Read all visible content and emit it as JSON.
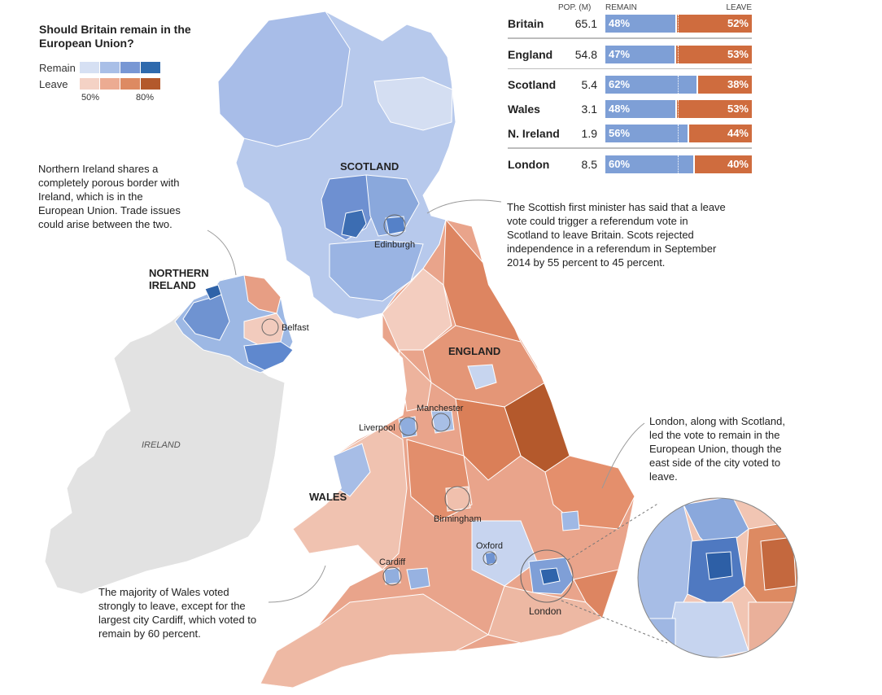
{
  "legend": {
    "title": "Should Britain remain in the European Union?",
    "remain_label": "Remain",
    "leave_label": "Leave",
    "tick_low": "50%",
    "tick_high": "80%",
    "remain_colors": [
      "#d6e0f3",
      "#a9bfe7",
      "#7897d4",
      "#2f6aad"
    ],
    "leave_colors": [
      "#f4d2c5",
      "#ecab92",
      "#dd8a62",
      "#b3592c"
    ]
  },
  "results": {
    "headers": {
      "pop": "POP. (M)",
      "remain": "REMAIN",
      "leave": "LEAVE"
    },
    "rows": [
      {
        "name": "Britain",
        "pop": "65.1",
        "remain": "48%",
        "leave": "52%",
        "remain_value": 48
      },
      {
        "name": "England",
        "pop": "54.8",
        "remain": "47%",
        "leave": "53%",
        "remain_value": 47
      },
      {
        "name": "Scotland",
        "pop": "5.4",
        "remain": "62%",
        "leave": "38%",
        "remain_value": 62
      },
      {
        "name": "Wales",
        "pop": "3.1",
        "remain": "48%",
        "leave": "53%",
        "remain_value": 48
      },
      {
        "name": "N. Ireland",
        "pop": "1.9",
        "remain": "56%",
        "leave": "44%",
        "remain_value": 56
      },
      {
        "name": "London",
        "pop": "8.5",
        "remain": "60%",
        "leave": "40%",
        "remain_value": 60
      }
    ]
  },
  "regions": {
    "scotland": "SCOTLAND",
    "northern_ireland_1": "NORTHERN",
    "northern_ireland_2": "IRELAND",
    "england": "ENGLAND",
    "wales": "WALES",
    "ireland": "IRELAND"
  },
  "cities": {
    "edinburgh": "Edinburgh",
    "belfast": "Belfast",
    "manchester": "Manchester",
    "liverpool": "Liverpool",
    "birmingham": "Birmingham",
    "oxford": "Oxford",
    "cardiff": "Cardiff",
    "london": "London"
  },
  "notes": {
    "ni": [
      "Northern Ireland shares a",
      "completely porous border with",
      "Ireland, which is in the",
      "European Union. Trade issues",
      "could arise between the two."
    ],
    "scotland": [
      "The Scottish first minister has said that a leave",
      "vote could trigger a referendum vote in",
      "Scotland to leave Britain. Scots rejected",
      "independence in a referendum in September",
      "2014 by 55 percent to 45 percent."
    ],
    "london": [
      "London, along with Scotland,",
      "led the vote to remain in the",
      "European Union, though the",
      "east side of the city voted to",
      "leave."
    ],
    "wales": [
      "The majority of Wales voted",
      "strongly to leave, except for the",
      "largest city Cardiff, which voted to",
      "remain by 60 percent."
    ]
  }
}
